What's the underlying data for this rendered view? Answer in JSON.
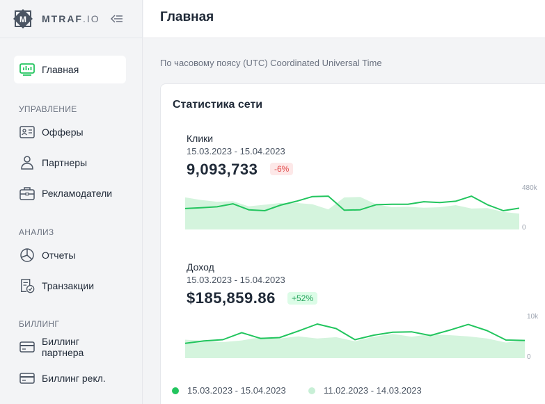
{
  "brand": {
    "name_bold": "MTRAF",
    "name_light": ".IO"
  },
  "sidebar": {
    "items_main": [
      {
        "label": "Главная",
        "icon": "dashboard-icon"
      }
    ],
    "sections": [
      {
        "title": "УПРАВЛЕНИЕ",
        "items": [
          {
            "label": "Офферы",
            "icon": "id-card-icon"
          },
          {
            "label": "Партнеры",
            "icon": "user-icon"
          },
          {
            "label": "Рекламодатели",
            "icon": "briefcase-icon"
          }
        ]
      },
      {
        "title": "АНАЛИЗ",
        "items": [
          {
            "label": "Отчеты",
            "icon": "pie-chart-icon"
          },
          {
            "label": "Транзакции",
            "icon": "receipt-check-icon"
          }
        ]
      },
      {
        "title": "БИЛЛИНГ",
        "items": [
          {
            "label": "Биллинг партнера",
            "icon": "credit-card-icon"
          },
          {
            "label": "Биллинг рекл.",
            "icon": "credit-card-icon"
          }
        ]
      }
    ]
  },
  "header": {
    "title": "Главная"
  },
  "timezone_note": "По часовому поясу (UTC) Coordinated Universal Time",
  "card": {
    "title": "Статистика сети",
    "metrics": [
      {
        "name": "Клики",
        "range": "15.03.2023 - 15.04.2023",
        "value": "9,093,733",
        "change": "-6%",
        "axis_max": "480k",
        "axis_min": "0"
      },
      {
        "name": "Доход",
        "range": "15.03.2023 - 15.04.2023",
        "value": "$185,859.86",
        "change": "+52%",
        "axis_max": "10k",
        "axis_min": "0"
      }
    ],
    "legend": [
      {
        "label": "15.03.2023 - 15.04.2023",
        "color": "#22c55e"
      },
      {
        "label": "11.02.2023 - 14.03.2023",
        "color": "#c8efd6"
      }
    ]
  },
  "colors": {
    "accent": "#22c55e",
    "area": "#d4f4dd",
    "negative": "#e24c4c"
  },
  "chart_data": [
    {
      "type": "area",
      "title": "Клики",
      "ylim": [
        0,
        480000
      ],
      "series": [
        {
          "name": "15.03.2023 - 15.04.2023",
          "values": [
            245000,
            255000,
            265000,
            300000,
            230000,
            220000,
            285000,
            330000,
            385000,
            390000,
            225000,
            230000,
            290000,
            295000,
            295000,
            325000,
            315000,
            330000,
            390000,
            290000,
            220000,
            250000
          ]
        },
        {
          "name": "11.02.2023 - 14.03.2023",
          "values": [
            375000,
            345000,
            325000,
            330000,
            270000,
            290000,
            310000,
            310000,
            295000,
            235000,
            375000,
            380000,
            295000,
            260000,
            265000,
            255000,
            260000,
            285000,
            245000,
            250000,
            205000,
            185000
          ]
        }
      ]
    },
    {
      "type": "area",
      "title": "Доход",
      "ylim": [
        0,
        10000
      ],
      "series": [
        {
          "name": "15.03.2023 - 15.04.2023",
          "values": [
            3600,
            4200,
            4500,
            6200,
            4800,
            5000,
            6600,
            8300,
            7200,
            4500,
            5600,
            6300,
            6400,
            5500,
            6800,
            8200,
            6700,
            4400,
            4300
          ]
        },
        {
          "name": "11.02.2023 - 14.03.2023",
          "values": [
            4500,
            4200,
            3900,
            4300,
            5100,
            4800,
            5300,
            4800,
            5100,
            4100,
            5200,
            5900,
            5200,
            5800,
            5600,
            5300,
            4800,
            3800,
            4300
          ]
        }
      ]
    }
  ]
}
